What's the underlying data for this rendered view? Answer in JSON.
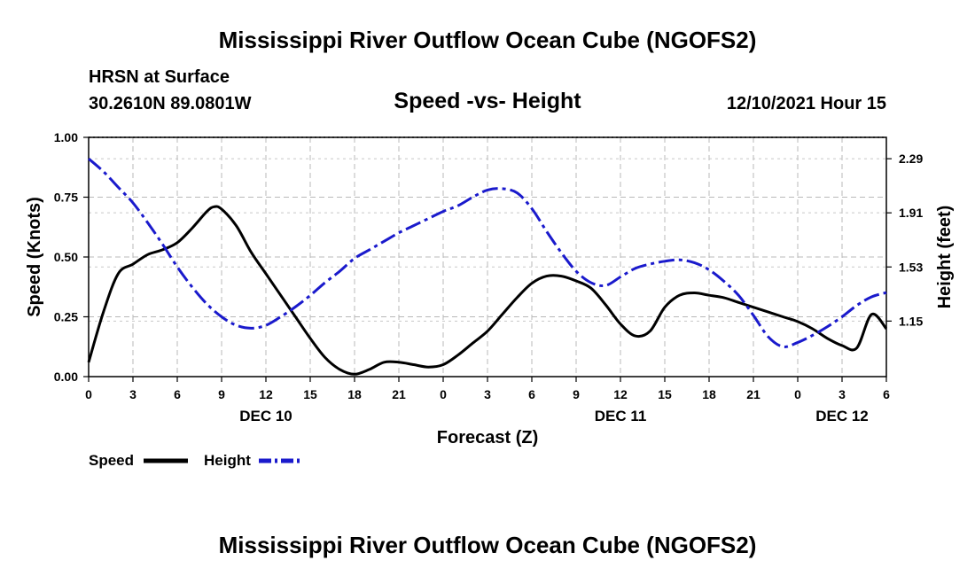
{
  "page": {
    "title": "Mississippi River Outflow Ocean Cube (NGOFS2)",
    "bottom_title": "Mississippi River Outflow Ocean Cube (NGOFS2)",
    "station": "HRSN at Surface",
    "coords": "30.2610N  89.0801W",
    "date": "12/10/2021 Hour 15"
  },
  "chart_data": {
    "type": "line",
    "title": "Speed -vs- Height",
    "xlabel": "Forecast (Z)",
    "ylabel": "Speed (Knots)",
    "y2label": "Height (feet)",
    "x_range": [
      0,
      54
    ],
    "x_ticks": [
      0,
      3,
      6,
      9,
      12,
      15,
      18,
      21,
      24,
      27,
      30,
      33,
      36,
      39,
      42,
      45,
      48,
      51,
      54
    ],
    "x_tick_labels": [
      "0",
      "3",
      "6",
      "9",
      "12",
      "15",
      "18",
      "21",
      "0",
      "3",
      "6",
      "9",
      "12",
      "15",
      "18",
      "21",
      "0",
      "3",
      "6"
    ],
    "date_labels": [
      {
        "x": 12,
        "label": "DEC 10"
      },
      {
        "x": 36,
        "label": "DEC 11"
      },
      {
        "x": 51,
        "label": "DEC 12"
      }
    ],
    "ylim": [
      0,
      1.0
    ],
    "y_ticks": [
      0.0,
      0.25,
      0.5,
      0.75,
      1.0
    ],
    "y_tick_labels": [
      "0.00",
      "0.25",
      "0.50",
      "0.75",
      "1.00"
    ],
    "y2lim": [
      0.76,
      2.44
    ],
    "y2_ticks": [
      1.15,
      1.53,
      1.91,
      2.29
    ],
    "y2_tick_labels": [
      "1.15",
      "1.53",
      "1.91",
      "2.29"
    ],
    "grid": true,
    "series": [
      {
        "name": "Speed",
        "axis": "left",
        "color": "#000000",
        "dash": "solid",
        "x": [
          0,
          1,
          2,
          3,
          4,
          5,
          6,
          7,
          8,
          8.5,
          9,
          10,
          11,
          12,
          13,
          14,
          15,
          16,
          17,
          18,
          19,
          20,
          21,
          22,
          23,
          24,
          25,
          26,
          27,
          28,
          29,
          30,
          31,
          32,
          33,
          34,
          35,
          36,
          37,
          38,
          39,
          40,
          41,
          42,
          43,
          44,
          45,
          46,
          47,
          48,
          49,
          50,
          51,
          52,
          53,
          54
        ],
        "values": [
          0.06,
          0.27,
          0.43,
          0.47,
          0.51,
          0.53,
          0.56,
          0.62,
          0.69,
          0.71,
          0.7,
          0.63,
          0.52,
          0.43,
          0.34,
          0.25,
          0.16,
          0.08,
          0.03,
          0.01,
          0.03,
          0.06,
          0.06,
          0.05,
          0.04,
          0.05,
          0.09,
          0.14,
          0.19,
          0.26,
          0.33,
          0.39,
          0.42,
          0.42,
          0.4,
          0.37,
          0.3,
          0.22,
          0.17,
          0.19,
          0.29,
          0.34,
          0.35,
          0.34,
          0.33,
          0.31,
          0.29,
          0.27,
          0.25,
          0.23,
          0.2,
          0.16,
          0.13,
          0.12,
          0.26,
          0.2
        ]
      },
      {
        "name": "Height",
        "axis": "right",
        "color": "#1a1acc",
        "dash": "dashdot",
        "x": [
          0,
          1,
          2,
          3,
          4,
          5,
          6,
          7,
          8,
          9,
          10,
          11,
          12,
          13,
          14,
          15,
          16,
          17,
          18,
          19,
          20,
          21,
          22,
          23,
          24,
          25,
          26,
          27,
          28,
          29,
          30,
          31,
          32,
          33,
          34,
          35,
          36,
          37,
          38,
          39,
          40,
          41,
          42,
          43,
          44,
          45,
          46,
          47,
          48,
          49,
          50,
          51,
          52,
          53,
          54
        ],
        "values": [
          2.29,
          2.2,
          2.09,
          1.98,
          1.84,
          1.69,
          1.53,
          1.39,
          1.27,
          1.18,
          1.12,
          1.1,
          1.12,
          1.18,
          1.25,
          1.33,
          1.42,
          1.5,
          1.59,
          1.65,
          1.71,
          1.77,
          1.82,
          1.87,
          1.92,
          1.96,
          2.02,
          2.07,
          2.08,
          2.05,
          1.94,
          1.78,
          1.63,
          1.5,
          1.42,
          1.4,
          1.46,
          1.52,
          1.55,
          1.57,
          1.58,
          1.56,
          1.51,
          1.43,
          1.33,
          1.19,
          1.04,
          0.97,
          1.0,
          1.05,
          1.11,
          1.18,
          1.26,
          1.32,
          1.35
        ]
      }
    ],
    "legend": [
      "Speed",
      "Height"
    ]
  }
}
